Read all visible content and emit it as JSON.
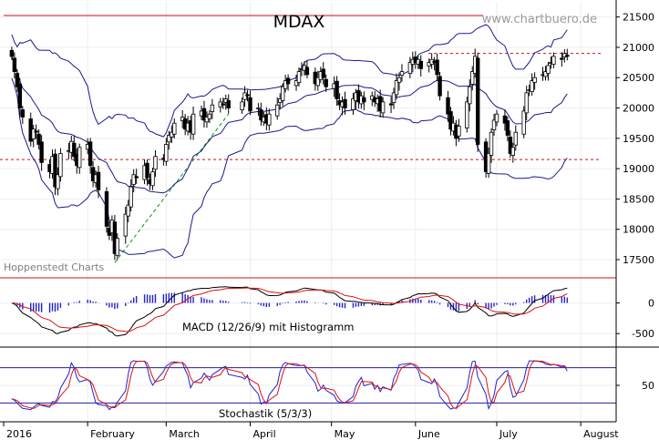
{
  "colors": {
    "candle": "#000000",
    "band": "#1a1a8c",
    "resistance": "#d01010",
    "trend": "#169216",
    "macd_line": "#000000",
    "signal_line": "#dd1111",
    "histogram": "#2222cc",
    "stoch_k": "#2222cc",
    "stoch_d": "#dd1111",
    "stoch_levels": "#2020a0"
  },
  "chart_data": [
    {
      "panel": "price",
      "type": "candlestick",
      "title": "MDAX",
      "watermark": "www.chartbuero.de",
      "source": "Hoppenstedt Charts",
      "overlays": [
        "Bollinger Bands",
        "Moving Average"
      ],
      "y_ticks": [
        "21500",
        "21000",
        "20500",
        "20000",
        "19500",
        "19000",
        "18500",
        "18000",
        "17500"
      ],
      "ylim": [
        17200,
        21750
      ],
      "resistance_levels": [
        20900,
        19150
      ],
      "trend_line": [
        {
          "date": "2016-02-11",
          "value": 17450
        },
        {
          "date": "2016-03-24",
          "value": 19900
        }
      ],
      "x_ticks": [
        "2016",
        "February",
        "March",
        "April",
        "May",
        "June",
        "July",
        "August"
      ],
      "closes": [
        {
          "date": "2016-01-04",
          "value": 20850
        },
        {
          "date": "2016-01-05",
          "value": 20600
        },
        {
          "date": "2016-01-06",
          "value": 20350
        },
        {
          "date": "2016-01-07",
          "value": 20000
        },
        {
          "date": "2016-01-08",
          "value": 19850
        },
        {
          "date": "2016-01-11",
          "value": 19450
        },
        {
          "date": "2016-01-12",
          "value": 19650
        },
        {
          "date": "2016-01-13",
          "value": 19600
        },
        {
          "date": "2016-01-14",
          "value": 19400
        },
        {
          "date": "2016-01-15",
          "value": 19100
        },
        {
          "date": "2016-01-18",
          "value": 18950
        },
        {
          "date": "2016-01-19",
          "value": 19200
        },
        {
          "date": "2016-01-20",
          "value": 18700
        },
        {
          "date": "2016-01-21",
          "value": 18900
        },
        {
          "date": "2016-01-22",
          "value": 19250
        },
        {
          "date": "2016-01-25",
          "value": 19300
        },
        {
          "date": "2016-01-26",
          "value": 19450
        },
        {
          "date": "2016-01-27",
          "value": 19200
        },
        {
          "date": "2016-01-28",
          "value": 19050
        },
        {
          "date": "2016-01-29",
          "value": 19350
        },
        {
          "date": "2016-02-01",
          "value": 19400
        },
        {
          "date": "2016-02-02",
          "value": 19050
        },
        {
          "date": "2016-02-03",
          "value": 18800
        },
        {
          "date": "2016-02-04",
          "value": 18900
        },
        {
          "date": "2016-02-05",
          "value": 18650
        },
        {
          "date": "2016-02-08",
          "value": 18050
        },
        {
          "date": "2016-02-09",
          "value": 17900
        },
        {
          "date": "2016-02-10",
          "value": 18150
        },
        {
          "date": "2016-02-11",
          "value": 17600
        },
        {
          "date": "2016-02-12",
          "value": 17850
        },
        {
          "date": "2016-02-15",
          "value": 18250
        },
        {
          "date": "2016-02-16",
          "value": 18400
        },
        {
          "date": "2016-02-17",
          "value": 18700
        },
        {
          "date": "2016-02-18",
          "value": 18900
        },
        {
          "date": "2016-02-19",
          "value": 18850
        },
        {
          "date": "2016-02-22",
          "value": 19050
        },
        {
          "date": "2016-02-23",
          "value": 18850
        },
        {
          "date": "2016-02-24",
          "value": 18750
        },
        {
          "date": "2016-02-25",
          "value": 18950
        },
        {
          "date": "2016-02-26",
          "value": 19200
        },
        {
          "date": "2016-02-29",
          "value": 19150
        },
        {
          "date": "2016-03-01",
          "value": 19400
        },
        {
          "date": "2016-03-02",
          "value": 19550
        },
        {
          "date": "2016-03-03",
          "value": 19600
        },
        {
          "date": "2016-03-04",
          "value": 19750
        },
        {
          "date": "2016-03-07",
          "value": 19850
        },
        {
          "date": "2016-03-08",
          "value": 19650
        },
        {
          "date": "2016-03-09",
          "value": 19750
        },
        {
          "date": "2016-03-10",
          "value": 19600
        },
        {
          "date": "2016-03-11",
          "value": 19900
        },
        {
          "date": "2016-03-14",
          "value": 19950
        },
        {
          "date": "2016-03-15",
          "value": 19800
        },
        {
          "date": "2016-03-16",
          "value": 19850
        },
        {
          "date": "2016-03-17",
          "value": 19900
        },
        {
          "date": "2016-03-18",
          "value": 20050
        },
        {
          "date": "2016-03-21",
          "value": 20100
        },
        {
          "date": "2016-03-22",
          "value": 20050
        },
        {
          "date": "2016-03-23",
          "value": 20150
        },
        {
          "date": "2016-03-24",
          "value": 20000
        },
        {
          "date": "2016-03-29",
          "value": 20100
        },
        {
          "date": "2016-03-30",
          "value": 20250
        },
        {
          "date": "2016-03-31",
          "value": 20200
        },
        {
          "date": "2016-04-01",
          "value": 19950
        },
        {
          "date": "2016-04-04",
          "value": 20000
        },
        {
          "date": "2016-04-05",
          "value": 19800
        },
        {
          "date": "2016-04-06",
          "value": 19850
        },
        {
          "date": "2016-04-07",
          "value": 19750
        },
        {
          "date": "2016-04-08",
          "value": 19900
        },
        {
          "date": "2016-04-11",
          "value": 20050
        },
        {
          "date": "2016-04-12",
          "value": 20150
        },
        {
          "date": "2016-04-13",
          "value": 20350
        },
        {
          "date": "2016-04-14",
          "value": 20450
        },
        {
          "date": "2016-04-15",
          "value": 20400
        },
        {
          "date": "2016-04-18",
          "value": 20450
        },
        {
          "date": "2016-04-19",
          "value": 20600
        },
        {
          "date": "2016-04-20",
          "value": 20650
        },
        {
          "date": "2016-04-21",
          "value": 20700
        },
        {
          "date": "2016-04-22",
          "value": 20550
        },
        {
          "date": "2016-04-25",
          "value": 20400
        },
        {
          "date": "2016-04-26",
          "value": 20500
        },
        {
          "date": "2016-04-27",
          "value": 20600
        },
        {
          "date": "2016-04-28",
          "value": 20500
        },
        {
          "date": "2016-04-29",
          "value": 20350
        },
        {
          "date": "2016-05-02",
          "value": 20400
        },
        {
          "date": "2016-05-03",
          "value": 20150
        },
        {
          "date": "2016-05-04",
          "value": 20050
        },
        {
          "date": "2016-05-05",
          "value": 20100
        },
        {
          "date": "2016-05-06",
          "value": 20000
        },
        {
          "date": "2016-05-09",
          "value": 20150
        },
        {
          "date": "2016-05-10",
          "value": 20250
        },
        {
          "date": "2016-05-11",
          "value": 20100
        },
        {
          "date": "2016-05-12",
          "value": 20200
        },
        {
          "date": "2016-05-13",
          "value": 20100
        },
        {
          "date": "2016-05-16",
          "value": 20200
        },
        {
          "date": "2016-05-17",
          "value": 20100
        },
        {
          "date": "2016-05-18",
          "value": 20150
        },
        {
          "date": "2016-05-19",
          "value": 19950
        },
        {
          "date": "2016-05-20",
          "value": 20100
        },
        {
          "date": "2016-05-23",
          "value": 20050
        },
        {
          "date": "2016-05-24",
          "value": 20250
        },
        {
          "date": "2016-05-25",
          "value": 20450
        },
        {
          "date": "2016-05-26",
          "value": 20500
        },
        {
          "date": "2016-05-27",
          "value": 20600
        },
        {
          "date": "2016-05-30",
          "value": 20750
        },
        {
          "date": "2016-05-31",
          "value": 20800
        },
        {
          "date": "2016-06-01",
          "value": 20750
        },
        {
          "date": "2016-06-02",
          "value": 20800
        },
        {
          "date": "2016-06-03",
          "value": 20650
        },
        {
          "date": "2016-06-06",
          "value": 20750
        },
        {
          "date": "2016-06-07",
          "value": 20800
        },
        {
          "date": "2016-06-08",
          "value": 20750
        },
        {
          "date": "2016-06-09",
          "value": 20550
        },
        {
          "date": "2016-06-10",
          "value": 20200
        },
        {
          "date": "2016-06-13",
          "value": 19900
        },
        {
          "date": "2016-06-14",
          "value": 19650
        },
        {
          "date": "2016-06-15",
          "value": 19750
        },
        {
          "date": "2016-06-16",
          "value": 19500
        },
        {
          "date": "2016-06-17",
          "value": 19700
        },
        {
          "date": "2016-06-20",
          "value": 20100
        },
        {
          "date": "2016-06-21",
          "value": 20350
        },
        {
          "date": "2016-06-22",
          "value": 20600
        },
        {
          "date": "2016-06-23",
          "value": 20850
        },
        {
          "date": "2016-06-24",
          "value": 19400
        },
        {
          "date": "2016-06-27",
          "value": 18950
        },
        {
          "date": "2016-06-28",
          "value": 19250
        },
        {
          "date": "2016-06-29",
          "value": 19600
        },
        {
          "date": "2016-06-30",
          "value": 19800
        },
        {
          "date": "2016-07-01",
          "value": 19900
        },
        {
          "date": "2016-07-04",
          "value": 19750
        },
        {
          "date": "2016-07-05",
          "value": 19550
        },
        {
          "date": "2016-07-06",
          "value": 19250
        },
        {
          "date": "2016-07-07",
          "value": 19350
        },
        {
          "date": "2016-07-08",
          "value": 19600
        },
        {
          "date": "2016-07-11",
          "value": 19950
        },
        {
          "date": "2016-07-12",
          "value": 20250
        },
        {
          "date": "2016-07-13",
          "value": 20300
        },
        {
          "date": "2016-07-14",
          "value": 20450
        },
        {
          "date": "2016-07-15",
          "value": 20500
        },
        {
          "date": "2016-07-18",
          "value": 20550
        },
        {
          "date": "2016-07-19",
          "value": 20600
        },
        {
          "date": "2016-07-20",
          "value": 20700
        },
        {
          "date": "2016-07-21",
          "value": 20750
        },
        {
          "date": "2016-07-22",
          "value": 20850
        },
        {
          "date": "2016-07-25",
          "value": 20800
        },
        {
          "date": "2016-07-26",
          "value": 20900
        },
        {
          "date": "2016-07-27",
          "value": 20850
        }
      ]
    },
    {
      "panel": "macd",
      "type": "line",
      "label": "MACD (12/26/9) mit Histogramm",
      "y_ticks": [
        "0",
        "-500"
      ],
      "ylim": [
        -720,
        380
      ]
    },
    {
      "panel": "stochastic",
      "type": "line",
      "label": "Stochastik (5/3/3)",
      "y_ticks": [
        "50"
      ],
      "ylim": [
        -12,
        112
      ],
      "levels": [
        80,
        20
      ]
    }
  ]
}
